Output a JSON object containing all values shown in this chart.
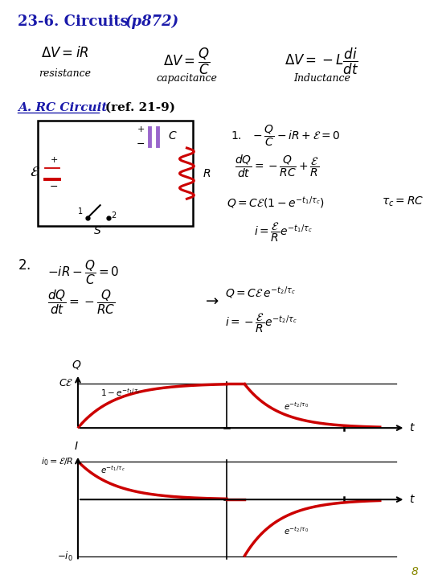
{
  "title1": "23-6. Circuits ",
  "title2": "(p872)",
  "bg_color": "#ffffff",
  "red_color": "#cc0000",
  "blue_color": "#1a1aaa",
  "purple_color": "#9966cc",
  "page_number": "8",
  "page_number_color": "#888800"
}
